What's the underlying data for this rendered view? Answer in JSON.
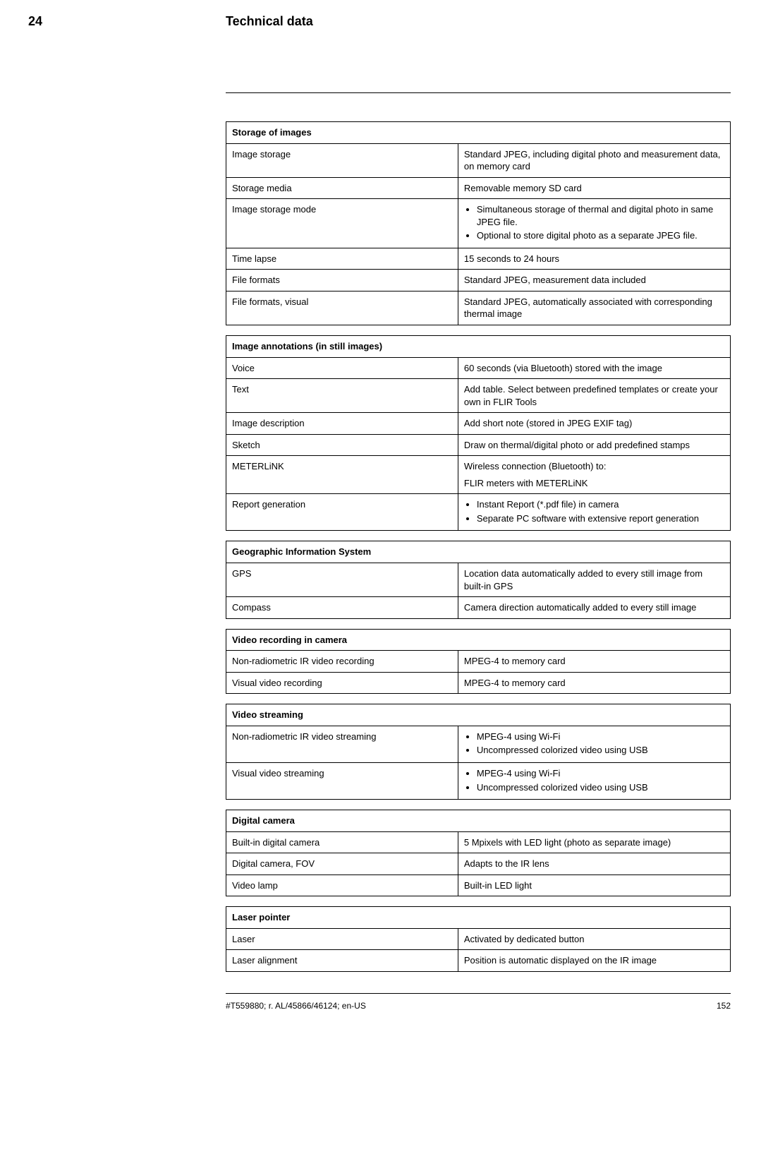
{
  "header": {
    "chapter_number": "24",
    "chapter_title": "Technical data"
  },
  "tables": [
    {
      "header": "Storage of images",
      "rows": [
        {
          "label": "Image storage",
          "value": "Standard JPEG, including digital photo and measurement data, on memory card"
        },
        {
          "label": "Storage media",
          "value": "Removable memory SD card"
        },
        {
          "label": "Image storage mode",
          "list": [
            "Simultaneous storage of thermal and digital photo in same JPEG file.",
            "Optional to store digital photo as a separate JPEG file."
          ]
        },
        {
          "label": "Time lapse",
          "value": "15 seconds to 24 hours"
        },
        {
          "label": "File formats",
          "value": "Standard JPEG, measurement data included"
        },
        {
          "label": "File formats, visual",
          "value": "Standard JPEG, automatically associated with corresponding thermal image"
        }
      ]
    },
    {
      "header": "Image annotations (in still images)",
      "rows": [
        {
          "label": "Voice",
          "value": "60 seconds (via Bluetooth) stored with the image"
        },
        {
          "label": "Text",
          "value": "Add table. Select between predefined templates or create your own in FLIR Tools"
        },
        {
          "label": "Image description",
          "value": "Add short note (stored in JPEG EXIF tag)"
        },
        {
          "label": "Sketch",
          "value": "Draw on thermal/digital photo or add predefined stamps"
        },
        {
          "label": "METERLiNK",
          "value_lines": [
            "Wireless connection (Bluetooth) to:",
            "FLIR meters with METERLiNK"
          ]
        },
        {
          "label": "Report generation",
          "list": [
            "Instant Report (*.pdf file) in camera",
            "Separate PC software with extensive report generation"
          ]
        }
      ]
    },
    {
      "header": "Geographic Information System",
      "rows": [
        {
          "label": "GPS",
          "value": "Location data automatically added to every still image from built-in GPS"
        },
        {
          "label": "Compass",
          "value": "Camera direction automatically added to every still image"
        }
      ]
    },
    {
      "header": "Video recording in camera",
      "rows": [
        {
          "label": "Non-radiometric IR video recording",
          "value": "MPEG-4 to memory card"
        },
        {
          "label": "Visual video recording",
          "value": "MPEG-4 to memory card"
        }
      ]
    },
    {
      "header": "Video streaming",
      "rows": [
        {
          "label": "Non-radiometric IR video streaming",
          "list": [
            "MPEG-4 using Wi-Fi",
            "Uncompressed colorized video using USB"
          ]
        },
        {
          "label": "Visual video streaming",
          "list": [
            "MPEG-4 using Wi-Fi",
            "Uncompressed colorized video using USB"
          ]
        }
      ]
    },
    {
      "header": "Digital camera",
      "rows": [
        {
          "label": "Built-in digital camera",
          "value": "5 Mpixels with LED light (photo as separate image)"
        },
        {
          "label": "Digital camera, FOV",
          "value": "Adapts to the IR lens"
        },
        {
          "label": "Video lamp",
          "value": "Built-in LED light"
        }
      ]
    },
    {
      "header": "Laser pointer",
      "rows": [
        {
          "label": "Laser",
          "value": "Activated by dedicated button"
        },
        {
          "label": "Laser alignment",
          "value": "Position is automatic displayed on the IR image"
        }
      ]
    }
  ],
  "footer": {
    "doc_ref": "#T559880; r. AL/45866/46124; en-US",
    "page_number": "152"
  },
  "styles": {
    "text_color": "#000000",
    "background_color": "#ffffff",
    "border_color": "#000000",
    "font_family": "Arial, Helvetica, sans-serif",
    "body_fontsize": 13,
    "header_fontsize": 18
  }
}
